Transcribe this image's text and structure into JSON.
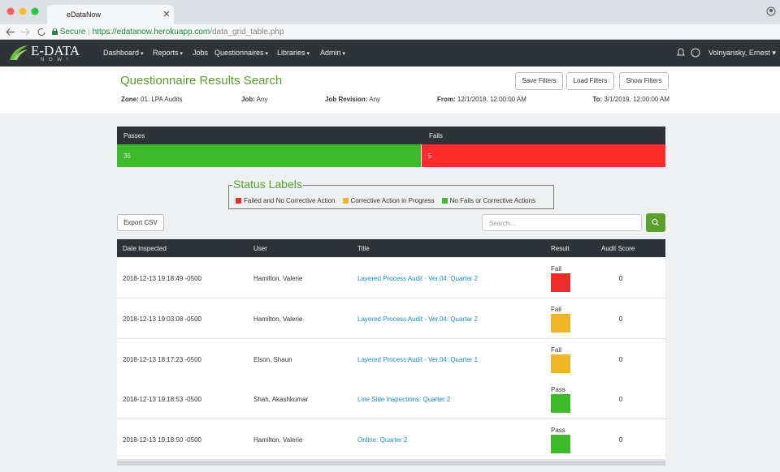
{
  "browser": {
    "tab_title": "eDataNow",
    "secure": "Secure",
    "url_host": "https://edatanow.herokuapp.com",
    "url_path": "/data_grid_table.php"
  },
  "nav": {
    "logo": "E-DATA",
    "logo_sub": "N O W !",
    "menu": [
      "Dashboard",
      "Reports",
      "Jobs",
      "Questionnaires",
      "Libraries",
      "Admin"
    ],
    "menu_dropdown": [
      true,
      true,
      false,
      true,
      true,
      true
    ],
    "user": "Volnyansky, Ernest"
  },
  "header": {
    "title": "Questionnaire Results Search",
    "buttons": [
      "Save Filters",
      "Load Filters",
      "Show Filters"
    ],
    "filters": [
      {
        "label": "Zone:",
        "value": "01. LPA Audits"
      },
      {
        "label": "Job:",
        "value": "Any"
      },
      {
        "label": "Job Revision:",
        "value": "Any"
      },
      {
        "label": "From:",
        "value": "12/1/2018, 12:00:00 AM"
      },
      {
        "label": "To:",
        "value": "3/1/2019, 12:00:00 AM"
      }
    ]
  },
  "summary": {
    "passes_label": "Passes",
    "passes": 35,
    "fails_label": "Fails",
    "fails": 5,
    "passes_color": "#3cba2c",
    "fails_color": "#ff2b2b"
  },
  "status_labels": {
    "title": "Status Labels",
    "items": [
      {
        "label": "Failed and No Corrective Action",
        "color": "#ee2a2a"
      },
      {
        "label": "Corrective Action in Progress",
        "color": "#f0b429"
      },
      {
        "label": "No Fails or Corrective Actions",
        "color": "#3cba2c"
      }
    ]
  },
  "toolbar": {
    "export": "Export CSV",
    "search_placeholder": "Search..."
  },
  "table": {
    "columns": [
      "Date Inspected",
      "User",
      "Title",
      "Result",
      "Audit Score"
    ],
    "rows": [
      {
        "date": "2018-12-13 19:18:49 -0500",
        "user": "Hamilton, Valerie",
        "title": "Layered Process Audit - Ver.04: Quarter 2",
        "result": "Fail",
        "status_color": "#ee2a2a",
        "score": 0
      },
      {
        "date": "2018-12-13 19:03:08 -0500",
        "user": "Hamilton, Valerie",
        "title": "Layered Process Audit - Ver.04: Quarter 2",
        "result": "Fail",
        "status_color": "#f0b429",
        "score": 0
      },
      {
        "date": "2018-12-13 18:17:23 -0500",
        "user": "Elson, Shaun",
        "title": "Layered Process Audit - Ver.04: Quarter 1",
        "result": "Fail",
        "status_color": "#f0b429",
        "score": 0
      },
      {
        "date": "2018-12-13 19:18:53 -0500",
        "user": "Shah, Akashkumar",
        "title": "Line Side Inspections: Quarter 2",
        "result": "Pass",
        "status_color": "#3cba2c",
        "score": 0
      },
      {
        "date": "2018-12-13 19:18:50 -0500",
        "user": "Hamilton, Valerie",
        "title": "Online: Quarter 2",
        "result": "Pass",
        "status_color": "#3cba2c",
        "score": 0
      }
    ]
  }
}
